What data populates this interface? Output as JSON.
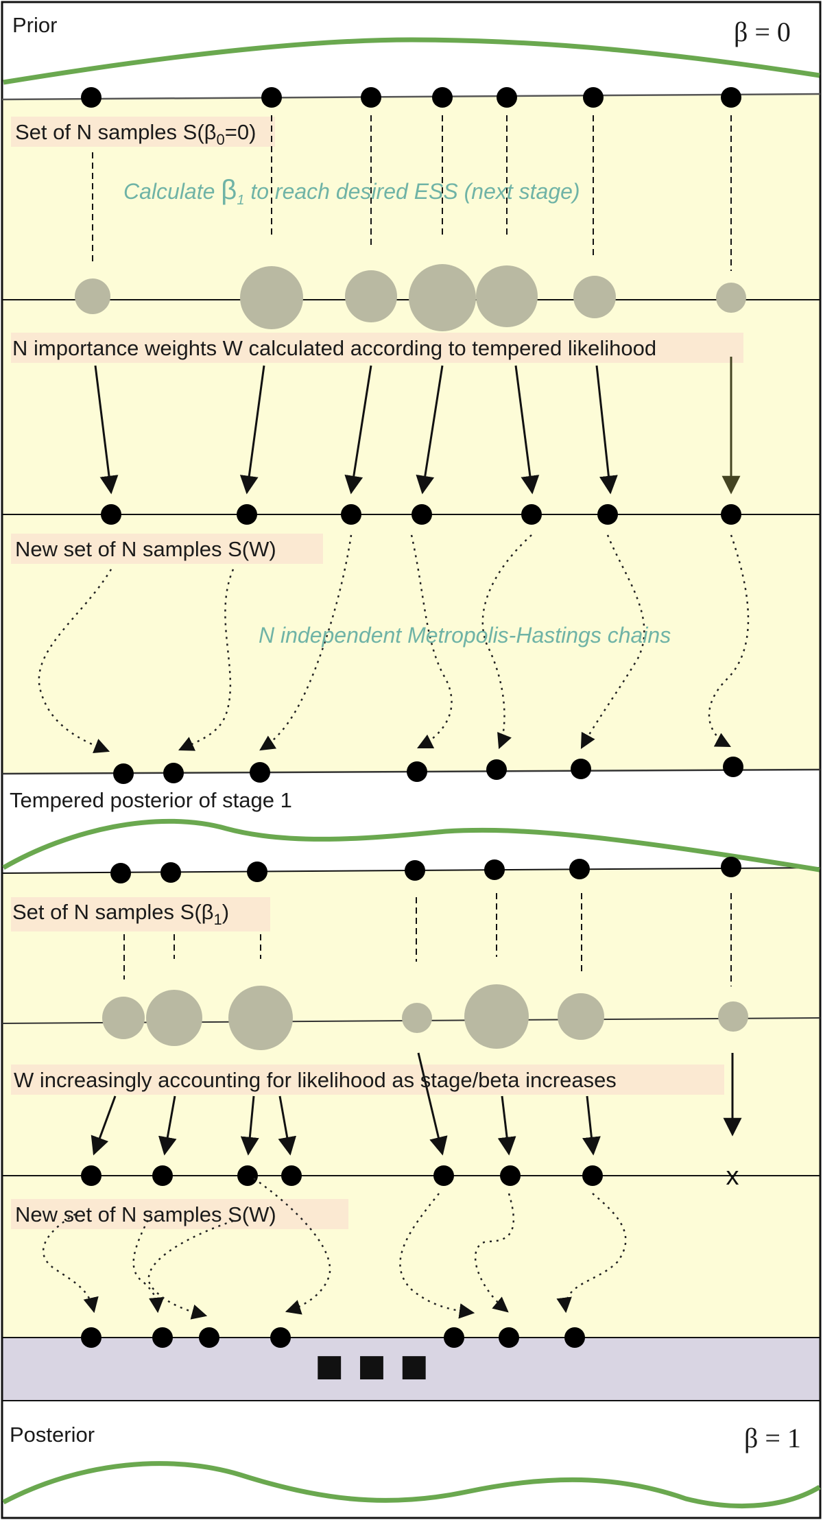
{
  "sections": {
    "prior_title": "Prior",
    "prior_beta": "β = 0",
    "samples_beta0": "Set of N samples S(β",
    "samples_beta0_sub": "0",
    "samples_beta0_end": "=0)",
    "calc_annotation_pre": "Calculate ",
    "calc_annotation_beta": "β",
    "calc_annotation_sub": "1",
    "calc_annotation_post": " to reach desired ESS (next stage)",
    "importance_weights": "N importance weights W calculated according to tempered likelihood",
    "new_set_1": "New set of N samples S(W)",
    "mh_chains": "N independent Metropolis-Hastings chains",
    "tempered_posterior": "Tempered posterior of stage 1",
    "samples_beta1": "Set of N samples S(β",
    "samples_beta1_sub": "1",
    "samples_beta1_end": ")",
    "w_increasing": "W increasingly accounting for likelihood as stage/beta increases",
    "new_set_2": "New set of N samples S(W)",
    "ellipsis": "■ ■ ■",
    "discarded_mark": "x",
    "posterior_title": "Posterior",
    "posterior_beta": "β = 1"
  },
  "colors": {
    "band_yellow": "#fdfcd7",
    "band_lavender": "#d9d5e3",
    "curve_green": "#6aa84f",
    "weight_circle": "#b9b9a2",
    "annotation_teal": "#6fb3a6",
    "label_highlight": "#fbe9d2"
  }
}
